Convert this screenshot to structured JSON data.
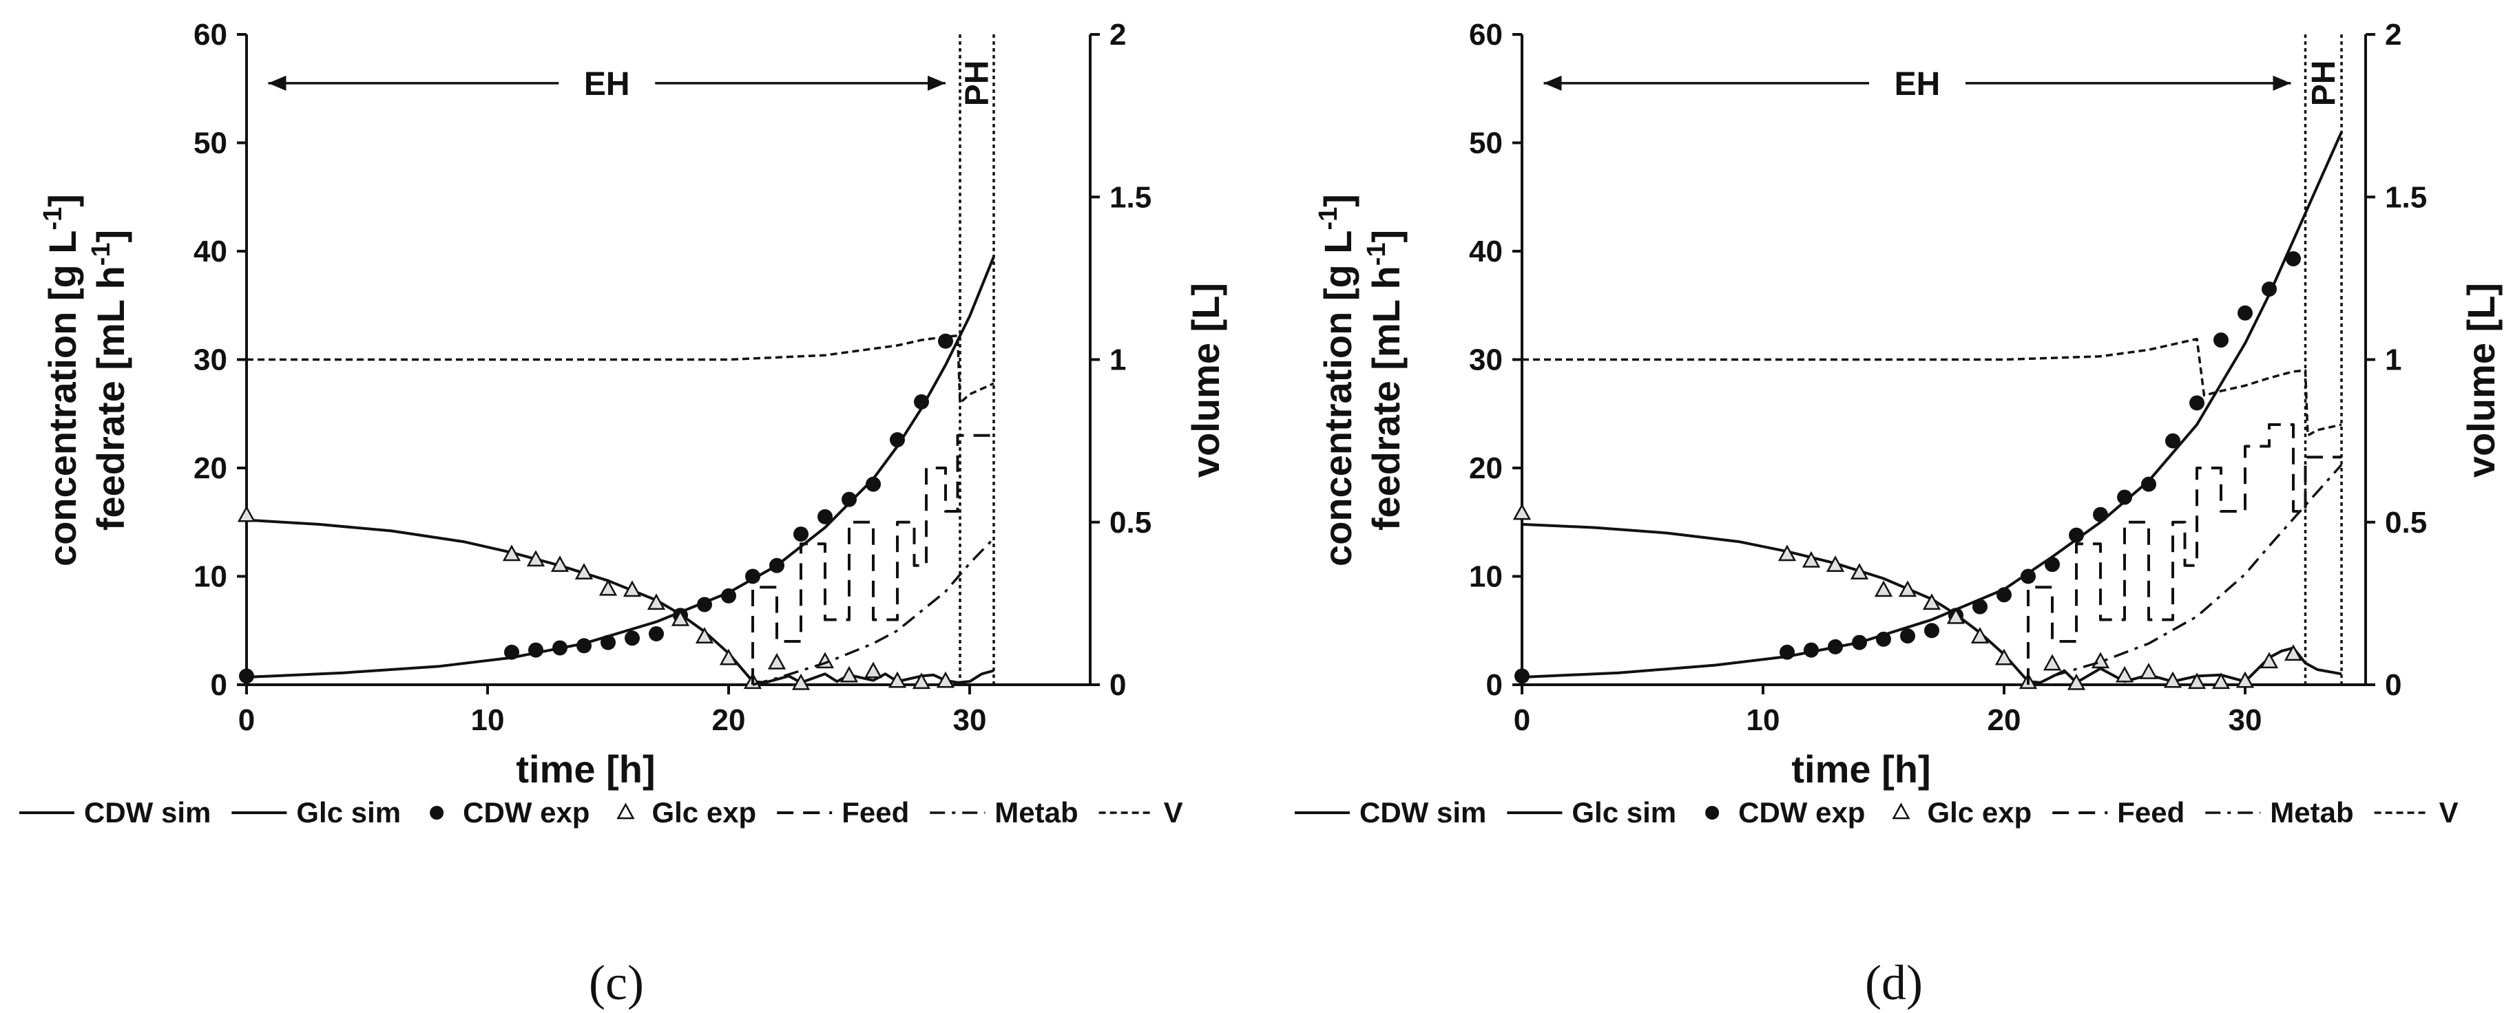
{
  "chart_data": [
    {
      "type": "line",
      "panel": "c",
      "caption": "(c)",
      "xlabel": "time [h]",
      "ylabel_lines": [
        "concentration [g L-1]",
        "feedrate [mL h-1]"
      ],
      "ylabel2": "volume [L]",
      "xlim": [
        0,
        35
      ],
      "xticks": [
        0,
        10,
        20,
        30
      ],
      "ylim": [
        0,
        60
      ],
      "yticks": [
        0,
        10,
        20,
        30,
        40,
        50,
        60
      ],
      "y2lim": [
        0,
        2
      ],
      "y2ticks": [
        "0",
        "0.5",
        "1",
        "1.5",
        "2"
      ],
      "phase_labels": {
        "eh": "EH",
        "ph": "PH"
      },
      "phase_boundaries": [
        29.6,
        31.0
      ],
      "legend": [
        "CDW sim",
        "Glc sim",
        "CDW exp",
        "Glc exp",
        "Feed",
        "Metab",
        "V"
      ],
      "series": [
        {
          "name": "CDW sim",
          "style": "solid",
          "x": [
            0,
            4,
            8,
            11,
            14,
            17,
            20,
            22,
            24,
            26,
            27,
            28,
            29,
            30,
            31
          ],
          "y": [
            0.7,
            1.1,
            1.7,
            2.5,
            3.8,
            5.8,
            8.5,
            11.0,
            14.5,
            19.0,
            22.0,
            25.5,
            29.5,
            34.0,
            39.5
          ]
        },
        {
          "name": "Glc sim",
          "style": "solid",
          "x": [
            0,
            3,
            6,
            9,
            11,
            13,
            15,
            17,
            18,
            19,
            20,
            21,
            21.5,
            22.5,
            23,
            24,
            24.5,
            25,
            26,
            26.5,
            27,
            28,
            28.5,
            29,
            29.5,
            30,
            30.5,
            31
          ],
          "y": [
            15.2,
            14.8,
            14.2,
            13.2,
            12.2,
            11.0,
            9.6,
            7.8,
            6.5,
            4.9,
            2.9,
            0.3,
            0.2,
            0.8,
            0.2,
            1.0,
            0.3,
            0.9,
            0.4,
            1.0,
            0.3,
            0.8,
            0.9,
            0.4,
            0.2,
            0.3,
            1.0,
            1.3
          ]
        },
        {
          "name": "CDW exp",
          "style": "marker-filled",
          "x": [
            0,
            11,
            12,
            13,
            14,
            15,
            16,
            17,
            18,
            19,
            20,
            21,
            22,
            23,
            24,
            25,
            26,
            27,
            28,
            29
          ],
          "y": [
            0.8,
            3.0,
            3.2,
            3.4,
            3.6,
            3.9,
            4.3,
            4.7,
            6.4,
            7.4,
            8.2,
            10.0,
            11.0,
            13.9,
            15.5,
            17.1,
            18.5,
            22.6,
            26.1,
            31.7
          ]
        },
        {
          "name": "Glc exp",
          "style": "marker-open-triangle",
          "x": [
            0,
            11,
            12,
            13,
            14,
            15,
            16,
            17,
            18,
            19,
            20,
            21,
            22,
            23,
            24,
            25,
            26,
            27,
            28,
            29
          ],
          "y": [
            15.6,
            12.0,
            11.5,
            11.0,
            10.3,
            8.8,
            8.7,
            7.5,
            6.0,
            4.4,
            2.4,
            0.2,
            2.0,
            0.1,
            2.1,
            0.8,
            1.2,
            0.3,
            0.2,
            0.3
          ]
        },
        {
          "name": "Feed",
          "style": "dashed",
          "x": [
            21,
            21,
            22,
            22,
            23,
            23,
            24,
            24,
            25,
            25,
            26,
            26,
            27,
            27,
            27.7,
            27.7,
            28.2,
            28.2,
            29,
            29,
            29.5,
            29.5,
            31
          ],
          "y": [
            0,
            9,
            9,
            4,
            4,
            13,
            13,
            6,
            6,
            15,
            15,
            6,
            6,
            15,
            15,
            11,
            11,
            20,
            20,
            16,
            16,
            23,
            23
          ]
        },
        {
          "name": "Metab",
          "style": "dash-dot",
          "x": [
            21,
            22,
            24,
            26,
            27,
            28,
            29,
            30,
            31
          ],
          "y": [
            0,
            0.6,
            2.0,
            3.8,
            5.0,
            6.8,
            8.6,
            11.2,
            13.5
          ]
        },
        {
          "name": "V",
          "style": "dashed-fine",
          "x": [
            0,
            10,
            20,
            24,
            26,
            27,
            28,
            29,
            29.5,
            29.6,
            30,
            31
          ],
          "y": [
            30,
            30,
            30,
            30.4,
            31.0,
            31.3,
            31.8,
            32.1,
            32.2,
            26.0,
            26.8,
            27.8
          ]
        }
      ]
    },
    {
      "type": "line",
      "panel": "d",
      "caption": "(d)",
      "xlabel": "time [h]",
      "ylabel_lines": [
        "concentration [g L-1]",
        "feedrate [mL h-1]"
      ],
      "ylabel2": "volume [L]",
      "xlim": [
        0,
        35
      ],
      "xticks": [
        0,
        10,
        20,
        30
      ],
      "ylim": [
        0,
        60
      ],
      "yticks": [
        0,
        10,
        20,
        30,
        40,
        50,
        60
      ],
      "y2lim": [
        0,
        2
      ],
      "y2ticks": [
        "0",
        "0.5",
        "1",
        "1.5",
        "2"
      ],
      "phase_labels": {
        "eh": "EH",
        "ph": "PH"
      },
      "phase_boundaries": [
        32.5,
        34.0
      ],
      "legend": [
        "CDW sim",
        "Glc sim",
        "CDW exp",
        "Glc exp",
        "Feed",
        "Metab",
        "V"
      ],
      "series": [
        {
          "name": "CDW sim",
          "style": "solid",
          "x": [
            0,
            4,
            8,
            11,
            14,
            17,
            20,
            22,
            24,
            26,
            28,
            30,
            31,
            32,
            33,
            34
          ],
          "y": [
            0.7,
            1.1,
            1.8,
            2.6,
            3.9,
            6.0,
            8.8,
            11.8,
            15.0,
            18.8,
            24.0,
            31.5,
            36.0,
            41.0,
            46.0,
            51.0
          ]
        },
        {
          "name": "Glc sim",
          "style": "solid",
          "x": [
            0,
            3,
            6,
            9,
            11,
            13,
            15,
            17,
            18,
            19,
            20,
            21,
            21.5,
            22.5,
            23,
            24,
            25,
            26,
            27,
            28,
            29,
            30,
            31,
            31.5,
            32,
            32.5,
            33,
            34
          ],
          "y": [
            14.8,
            14.5,
            14.0,
            13.2,
            12.3,
            11.2,
            9.8,
            7.9,
            6.5,
            4.8,
            2.8,
            0.3,
            0.2,
            1.3,
            0.2,
            1.5,
            0.3,
            0.9,
            0.3,
            0.8,
            0.9,
            0.3,
            2.5,
            3.1,
            3.4,
            2.0,
            1.4,
            1.0
          ]
        },
        {
          "name": "CDW exp",
          "style": "marker-filled",
          "x": [
            0,
            11,
            12,
            13,
            14,
            15,
            16,
            17,
            18,
            19,
            20,
            21,
            22,
            23,
            24,
            25,
            26,
            27,
            28,
            29,
            30,
            31,
            32
          ],
          "y": [
            0.8,
            3.0,
            3.2,
            3.5,
            3.9,
            4.2,
            4.5,
            5.0,
            6.4,
            7.2,
            8.3,
            10.0,
            11.1,
            13.8,
            15.7,
            17.3,
            18.5,
            22.5,
            26.0,
            31.8,
            34.3,
            36.5,
            39.3
          ]
        },
        {
          "name": "Glc exp",
          "style": "marker-open-triangle",
          "x": [
            0,
            11,
            12,
            13,
            14,
            15,
            16,
            17,
            18,
            19,
            20,
            21,
            22,
            23,
            24,
            25,
            26,
            27,
            28,
            29,
            30,
            31,
            32
          ],
          "y": [
            15.8,
            12.0,
            11.4,
            11.0,
            10.3,
            8.7,
            8.7,
            7.5,
            6.2,
            4.4,
            2.4,
            0.2,
            1.9,
            0.1,
            2.1,
            0.8,
            1.1,
            0.3,
            0.2,
            0.2,
            0.3,
            2.1,
            2.8
          ]
        },
        {
          "name": "Feed",
          "style": "dashed",
          "x": [
            21,
            21,
            22,
            22,
            23,
            23,
            24,
            24,
            25,
            25,
            26,
            26,
            27,
            27,
            27.5,
            27.5,
            28,
            28,
            29,
            29,
            30,
            30,
            31,
            31,
            32,
            32,
            32.5,
            32.5,
            34
          ],
          "y": [
            0,
            9,
            9,
            4,
            4,
            13,
            13,
            6,
            6,
            15,
            15,
            6,
            6,
            15,
            15,
            11,
            11,
            20,
            20,
            16,
            16,
            22,
            22,
            24,
            24,
            16,
            16,
            21,
            21
          ]
        },
        {
          "name": "Metab",
          "style": "dash-dot",
          "x": [
            22,
            24,
            26,
            28,
            30,
            31,
            32,
            33,
            34
          ],
          "y": [
            0.8,
            2.1,
            3.8,
            6.3,
            10.2,
            12.8,
            15.3,
            17.8,
            20.3
          ]
        },
        {
          "name": "V",
          "style": "dashed-fine",
          "x": [
            0,
            10,
            20,
            24,
            26,
            27,
            28,
            28.3,
            29,
            30,
            31,
            32,
            32.5,
            32.6,
            33,
            34
          ],
          "y": [
            30,
            30,
            30,
            30.3,
            30.9,
            31.4,
            31.9,
            26.7,
            27.1,
            27.6,
            28.3,
            28.9,
            29.0,
            23.0,
            23.5,
            24.0
          ]
        }
      ]
    }
  ]
}
